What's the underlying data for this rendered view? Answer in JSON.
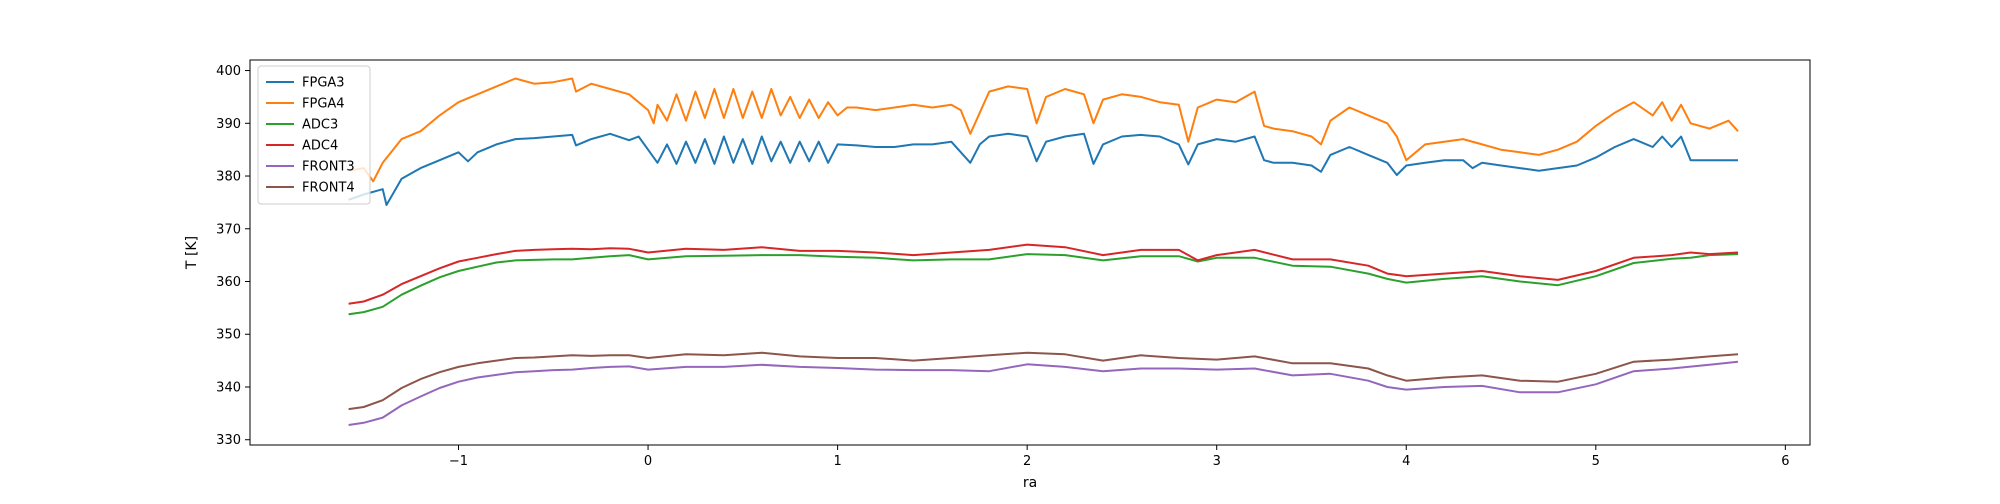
{
  "chart_data": {
    "type": "line",
    "xlabel": "ra",
    "ylabel": "T [K]",
    "xlim": [
      -2.1,
      6.13
    ],
    "ylim": [
      329,
      402
    ],
    "xticks": [
      -1,
      0,
      1,
      2,
      3,
      4,
      5,
      6
    ],
    "xtick_labels": [
      "−1",
      "0",
      "1",
      "2",
      "3",
      "4",
      "5",
      "6"
    ],
    "yticks": [
      330,
      340,
      350,
      360,
      370,
      380,
      390,
      400
    ],
    "ytick_labels": [
      "330",
      "340",
      "350",
      "360",
      "370",
      "380",
      "390",
      "400"
    ],
    "grid": false,
    "legend_position": "top-left",
    "series": [
      {
        "name": "FPGA3",
        "color": "#1f77b4",
        "x": [
          -1.58,
          -1.5,
          -1.4,
          -1.38,
          -1.3,
          -1.2,
          -1.1,
          -1.0,
          -0.95,
          -0.9,
          -0.8,
          -0.7,
          -0.6,
          -0.5,
          -0.4,
          -0.38,
          -0.3,
          -0.2,
          -0.1,
          -0.05,
          0.0,
          0.05,
          0.1,
          0.15,
          0.2,
          0.25,
          0.3,
          0.35,
          0.4,
          0.45,
          0.5,
          0.55,
          0.6,
          0.65,
          0.7,
          0.75,
          0.8,
          0.85,
          0.9,
          0.95,
          1.0,
          1.1,
          1.2,
          1.3,
          1.4,
          1.5,
          1.6,
          1.7,
          1.75,
          1.8,
          1.9,
          2.0,
          2.05,
          2.1,
          2.2,
          2.3,
          2.35,
          2.4,
          2.5,
          2.6,
          2.7,
          2.8,
          2.85,
          2.9,
          3.0,
          3.1,
          3.2,
          3.25,
          3.3,
          3.4,
          3.5,
          3.55,
          3.6,
          3.7,
          3.8,
          3.9,
          3.95,
          4.0,
          4.1,
          4.2,
          4.3,
          4.35,
          4.4,
          4.5,
          4.6,
          4.7,
          4.8,
          4.9,
          5.0,
          5.1,
          5.2,
          5.3,
          5.35,
          5.4,
          5.45,
          5.5,
          5.6,
          5.7,
          5.75
        ],
        "y": [
          375.5,
          376.5,
          377.5,
          374.5,
          379.5,
          381.5,
          383.0,
          384.5,
          382.8,
          384.5,
          386.0,
          387.0,
          387.2,
          387.5,
          387.8,
          385.8,
          387.0,
          388.0,
          386.8,
          387.5,
          385.0,
          382.5,
          386.0,
          382.3,
          386.5,
          382.5,
          387.0,
          382.3,
          387.5,
          382.5,
          387.0,
          382.3,
          387.5,
          382.8,
          386.5,
          382.5,
          386.5,
          382.8,
          386.5,
          382.5,
          386.0,
          385.8,
          385.5,
          385.5,
          386.0,
          386.0,
          386.5,
          382.5,
          386.0,
          387.5,
          388.0,
          387.5,
          382.8,
          386.5,
          387.5,
          388.0,
          382.3,
          386.0,
          387.5,
          387.8,
          387.5,
          386.0,
          382.2,
          386.0,
          387.0,
          386.5,
          387.5,
          383.0,
          382.5,
          382.5,
          382.0,
          380.8,
          384.0,
          385.5,
          384.0,
          382.5,
          380.2,
          382.0,
          382.5,
          383.0,
          383.0,
          381.5,
          382.5,
          382.0,
          381.5,
          381.0,
          381.5,
          382.0,
          383.5,
          385.5,
          387.0,
          385.5,
          387.5,
          385.5,
          387.5,
          383.0,
          383.0,
          383.0,
          383.0
        ]
      },
      {
        "name": "FPGA4",
        "color": "#ff7f0e",
        "x": [
          -1.58,
          -1.5,
          -1.45,
          -1.4,
          -1.3,
          -1.2,
          -1.1,
          -1.0,
          -0.9,
          -0.8,
          -0.7,
          -0.6,
          -0.5,
          -0.4,
          -0.38,
          -0.3,
          -0.2,
          -0.1,
          0.0,
          0.03,
          0.05,
          0.1,
          0.15,
          0.2,
          0.25,
          0.3,
          0.35,
          0.4,
          0.45,
          0.5,
          0.55,
          0.6,
          0.65,
          0.7,
          0.75,
          0.8,
          0.85,
          0.9,
          0.95,
          1.0,
          1.05,
          1.1,
          1.2,
          1.3,
          1.4,
          1.5,
          1.6,
          1.65,
          1.7,
          1.75,
          1.8,
          1.9,
          2.0,
          2.05,
          2.1,
          2.2,
          2.3,
          2.35,
          2.4,
          2.5,
          2.6,
          2.7,
          2.8,
          2.85,
          2.9,
          3.0,
          3.1,
          3.2,
          3.25,
          3.3,
          3.4,
          3.5,
          3.55,
          3.6,
          3.7,
          3.8,
          3.9,
          3.95,
          4.0,
          4.1,
          4.2,
          4.3,
          4.4,
          4.5,
          4.6,
          4.7,
          4.8,
          4.9,
          5.0,
          5.1,
          5.2,
          5.3,
          5.35,
          5.4,
          5.45,
          5.5,
          5.6,
          5.7,
          5.75
        ],
        "y": [
          381.0,
          381.5,
          379.0,
          382.5,
          387.0,
          388.5,
          391.5,
          394.0,
          395.5,
          397.0,
          398.5,
          397.5,
          397.8,
          398.5,
          396.0,
          397.5,
          396.5,
          395.5,
          392.5,
          390.0,
          393.5,
          390.5,
          395.5,
          390.5,
          396.0,
          391.0,
          396.5,
          391.0,
          396.5,
          391.0,
          396.0,
          391.0,
          396.5,
          391.5,
          395.0,
          391.0,
          394.5,
          391.0,
          394.0,
          391.5,
          393.0,
          393.0,
          392.5,
          393.0,
          393.5,
          393.0,
          393.5,
          392.5,
          388.0,
          392.0,
          396.0,
          397.0,
          396.5,
          390.0,
          395.0,
          396.5,
          395.5,
          390.0,
          394.5,
          395.5,
          395.0,
          394.0,
          393.5,
          386.5,
          393.0,
          394.5,
          394.0,
          396.0,
          389.5,
          389.0,
          388.5,
          387.5,
          386.0,
          390.5,
          393.0,
          391.5,
          390.0,
          387.5,
          383.0,
          386.0,
          386.5,
          387.0,
          386.0,
          385.0,
          384.5,
          384.0,
          385.0,
          386.5,
          389.5,
          392.0,
          394.0,
          391.5,
          394.0,
          390.5,
          393.5,
          390.0,
          389.0,
          390.5,
          388.5
        ]
      },
      {
        "name": "ADC3",
        "color": "#2ca02c",
        "x": [
          -1.58,
          -1.5,
          -1.4,
          -1.3,
          -1.2,
          -1.1,
          -1.0,
          -0.9,
          -0.8,
          -0.7,
          -0.6,
          -0.5,
          -0.4,
          -0.3,
          -0.2,
          -0.1,
          0.0,
          0.2,
          0.4,
          0.6,
          0.8,
          1.0,
          1.2,
          1.4,
          1.6,
          1.8,
          2.0,
          2.2,
          2.4,
          2.6,
          2.8,
          2.9,
          3.0,
          3.2,
          3.4,
          3.6,
          3.8,
          3.9,
          4.0,
          4.2,
          4.4,
          4.6,
          4.8,
          5.0,
          5.2,
          5.4,
          5.5,
          5.6,
          5.75
        ],
        "y": [
          353.8,
          354.2,
          355.2,
          357.5,
          359.2,
          360.8,
          362.0,
          362.8,
          363.6,
          364.0,
          364.1,
          364.2,
          364.2,
          364.5,
          364.8,
          365.0,
          364.2,
          364.8,
          364.9,
          365.0,
          365.0,
          364.7,
          364.5,
          364.0,
          364.2,
          364.2,
          365.2,
          365.0,
          364.0,
          364.8,
          364.8,
          363.8,
          364.5,
          364.5,
          363.0,
          362.8,
          361.5,
          360.5,
          359.8,
          360.5,
          361.0,
          360.0,
          359.3,
          361.0,
          363.5,
          364.3,
          364.5,
          365.0,
          365.2
        ]
      },
      {
        "name": "ADC4",
        "color": "#d62728",
        "x": [
          -1.58,
          -1.5,
          -1.4,
          -1.3,
          -1.2,
          -1.1,
          -1.0,
          -0.9,
          -0.8,
          -0.7,
          -0.6,
          -0.5,
          -0.4,
          -0.3,
          -0.2,
          -0.1,
          0.0,
          0.2,
          0.4,
          0.6,
          0.8,
          1.0,
          1.2,
          1.4,
          1.6,
          1.8,
          2.0,
          2.2,
          2.4,
          2.6,
          2.8,
          2.9,
          3.0,
          3.2,
          3.4,
          3.6,
          3.8,
          3.9,
          4.0,
          4.2,
          4.4,
          4.6,
          4.8,
          5.0,
          5.2,
          5.4,
          5.5,
          5.6,
          5.75
        ],
        "y": [
          355.8,
          356.2,
          357.5,
          359.5,
          361.0,
          362.5,
          363.8,
          364.5,
          365.2,
          365.8,
          366.0,
          366.1,
          366.2,
          366.1,
          366.3,
          366.2,
          365.5,
          366.2,
          366.0,
          366.5,
          365.8,
          365.8,
          365.5,
          365.0,
          365.5,
          366.0,
          367.0,
          366.5,
          365.0,
          366.0,
          366.0,
          364.0,
          365.0,
          366.0,
          364.2,
          364.2,
          363.0,
          361.5,
          361.0,
          361.5,
          362.0,
          361.0,
          360.3,
          362.0,
          364.5,
          365.0,
          365.5,
          365.2,
          365.5
        ]
      },
      {
        "name": "FRONT3",
        "color": "#9467bd",
        "x": [
          -1.58,
          -1.5,
          -1.4,
          -1.3,
          -1.2,
          -1.1,
          -1.0,
          -0.9,
          -0.8,
          -0.7,
          -0.6,
          -0.5,
          -0.4,
          -0.3,
          -0.2,
          -0.1,
          0.0,
          0.2,
          0.4,
          0.6,
          0.8,
          1.0,
          1.2,
          1.4,
          1.6,
          1.8,
          2.0,
          2.2,
          2.4,
          2.6,
          2.8,
          3.0,
          3.2,
          3.4,
          3.6,
          3.8,
          3.9,
          4.0,
          4.2,
          4.4,
          4.6,
          4.8,
          5.0,
          5.2,
          5.4,
          5.6,
          5.75
        ],
        "y": [
          332.8,
          333.2,
          334.2,
          336.5,
          338.2,
          339.8,
          341.0,
          341.8,
          342.3,
          342.8,
          343.0,
          343.2,
          343.3,
          343.6,
          343.8,
          343.9,
          343.3,
          343.8,
          343.8,
          344.2,
          343.8,
          343.6,
          343.3,
          343.2,
          343.2,
          343.0,
          344.3,
          343.8,
          343.0,
          343.5,
          343.5,
          343.3,
          343.5,
          342.2,
          342.5,
          341.2,
          340.0,
          339.5,
          340.0,
          340.2,
          339.0,
          339.0,
          340.5,
          343.0,
          343.5,
          344.2,
          344.8
        ]
      },
      {
        "name": "FRONT4",
        "color": "#8c564b",
        "x": [
          -1.58,
          -1.5,
          -1.4,
          -1.3,
          -1.2,
          -1.1,
          -1.0,
          -0.9,
          -0.8,
          -0.7,
          -0.6,
          -0.5,
          -0.4,
          -0.3,
          -0.2,
          -0.1,
          0.0,
          0.2,
          0.4,
          0.6,
          0.8,
          1.0,
          1.2,
          1.4,
          1.6,
          1.8,
          2.0,
          2.2,
          2.4,
          2.6,
          2.8,
          3.0,
          3.2,
          3.4,
          3.6,
          3.8,
          3.9,
          4.0,
          4.2,
          4.4,
          4.6,
          4.8,
          5.0,
          5.2,
          5.4,
          5.6,
          5.75
        ],
        "y": [
          335.8,
          336.2,
          337.5,
          339.8,
          341.5,
          342.8,
          343.8,
          344.5,
          345.0,
          345.5,
          345.6,
          345.8,
          346.0,
          345.9,
          346.0,
          346.0,
          345.5,
          346.2,
          346.0,
          346.5,
          345.8,
          345.5,
          345.5,
          345.0,
          345.5,
          346.0,
          346.5,
          346.2,
          345.0,
          346.0,
          345.5,
          345.2,
          345.8,
          344.5,
          344.5,
          343.5,
          342.2,
          341.2,
          341.8,
          342.2,
          341.2,
          341.0,
          342.5,
          344.8,
          345.2,
          345.8,
          346.2
        ]
      }
    ]
  }
}
